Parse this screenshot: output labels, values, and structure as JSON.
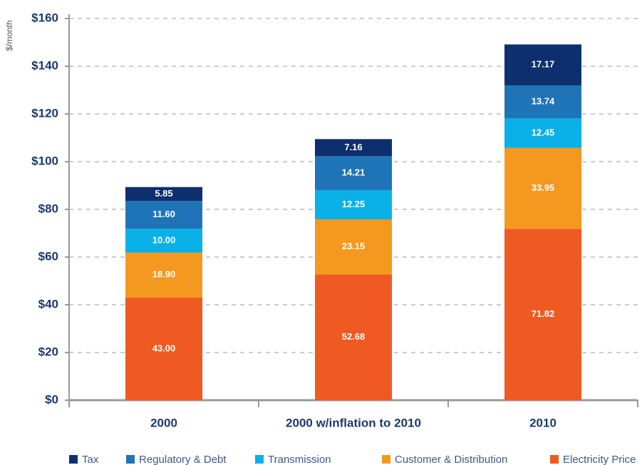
{
  "chart_data": {
    "type": "bar",
    "stacked": true,
    "y_label": "$/month",
    "categories": [
      "2000",
      "2000 w/inflation to 2010",
      "2010"
    ],
    "series": [
      {
        "name": "Tax",
        "color": "#0d2f6e",
        "values": [
          5.85,
          7.16,
          17.17
        ],
        "value_labels": [
          "5.85",
          "7.16",
          "17.17"
        ]
      },
      {
        "name": "Regulatory & Debt",
        "color": "#1f74b8",
        "values": [
          11.6,
          14.21,
          13.74
        ],
        "value_labels": [
          "11.60",
          "14.21",
          "13.74"
        ]
      },
      {
        "name": "Transmission",
        "color": "#0ab0e8",
        "values": [
          10,
          12.25,
          12.45
        ],
        "value_labels": [
          "10.00",
          "12.25",
          "12.45"
        ]
      },
      {
        "name": "Customer & Distribution",
        "color": "#f5981f",
        "values": [
          18.9,
          23.15,
          33.95
        ],
        "value_labels": [
          "18.90",
          "23.15",
          "33.95"
        ]
      },
      {
        "name": "Electricity Price",
        "color": "#ef5a22",
        "values": [
          43,
          52.68,
          71.82
        ],
        "value_labels": [
          "43.00",
          "52.68",
          "71.82"
        ]
      }
    ],
    "ylim": [
      0,
      160
    ],
    "yticks": [
      {
        "value": 0,
        "label": "$0"
      },
      {
        "value": 20,
        "label": "$20"
      },
      {
        "value": 40,
        "label": "$40"
      },
      {
        "value": 60,
        "label": "$60"
      },
      {
        "value": 80,
        "label": "$80"
      },
      {
        "value": 100,
        "label": "$100"
      },
      {
        "value": 120,
        "label": "$120"
      },
      {
        "value": 140,
        "label": "$140"
      },
      {
        "value": 160,
        "label": "$160"
      }
    ],
    "grid": true,
    "legend": "bottom"
  }
}
